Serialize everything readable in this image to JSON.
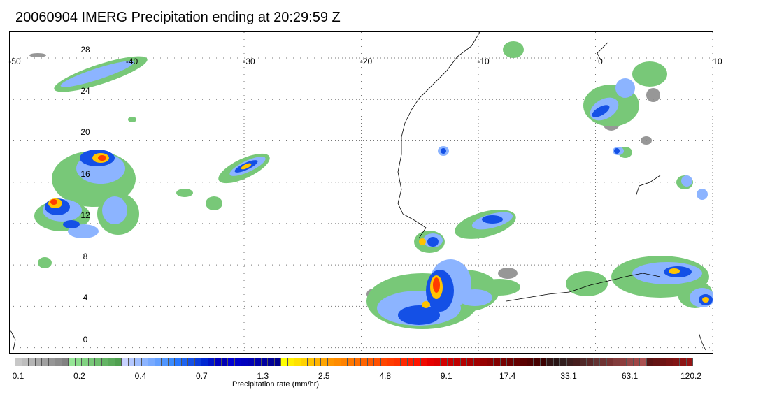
{
  "title": "20060904 IMERG Precipitation ending at 20:29:59 Z",
  "map": {
    "lon_ticks": [
      "-50",
      "-40",
      "-30",
      "-20",
      "-10",
      "0",
      "10"
    ],
    "lat_ticks": [
      "28",
      "24",
      "20",
      "16",
      "12",
      "8",
      "4",
      "0"
    ],
    "lon_range": [
      -50,
      10
    ],
    "lat_range": [
      -0.5,
      30.5
    ],
    "gridlines": true,
    "grid_style": "dotted"
  },
  "colorbar": {
    "label": "Precipitation rate (mm/hr)",
    "tick_labels": [
      "0.1",
      "0.2",
      "0.4",
      "0.7",
      "1.3",
      "2.5",
      "4.8",
      "9.1",
      "17.4",
      "33.1",
      "63.1",
      "120.2"
    ],
    "colors": [
      "#c8c8c8",
      "#bebebe",
      "#b4b4b4",
      "#aaaaaa",
      "#a0a0a0",
      "#969696",
      "#8c8c8c",
      "#828282",
      "#96e696",
      "#8cdc8c",
      "#82d282",
      "#78c878",
      "#6ebe6e",
      "#64b464",
      "#5aaa5a",
      "#50a050",
      "#c8d2ff",
      "#b4c8ff",
      "#a0beff",
      "#8cb4ff",
      "#78aaff",
      "#64a0ff",
      "#5096ff",
      "#3c8cff",
      "#2878ff",
      "#1e64f0",
      "#1450e6",
      "#0a3cdc",
      "#0028d2",
      "#0014c8",
      "#0000be",
      "#0000b4",
      "#0000d2",
      "#0000c8",
      "#0000be",
      "#0000b4",
      "#0000aa",
      "#0000a0",
      "#000096",
      "#00008c",
      "#ffff00",
      "#fff000",
      "#ffe100",
      "#ffd200",
      "#ffc300",
      "#ffb400",
      "#ffa500",
      "#ff9600",
      "#ff8c00",
      "#ff8200",
      "#ff7800",
      "#ff6e00",
      "#ff6400",
      "#ff5a00",
      "#ff5000",
      "#ff4600",
      "#ff3c00",
      "#ff3200",
      "#ff2800",
      "#ff1e00",
      "#ff1400",
      "#f00a00",
      "#e60000",
      "#dc0000",
      "#d20000",
      "#c80000",
      "#be0000",
      "#b40000",
      "#aa0000",
      "#a00000",
      "#960000",
      "#8c0000",
      "#820000",
      "#780000",
      "#6e0000",
      "#640000",
      "#5a0000",
      "#500000",
      "#460000",
      "#3c0000",
      "#321414",
      "#281414",
      "#321e1e",
      "#3c1e1e",
      "#461e1e",
      "#502828",
      "#5a2828",
      "#643232",
      "#6e3232",
      "#783232",
      "#823c3c",
      "#8c3c3c",
      "#964646",
      "#a04646",
      "#aa5050",
      "#5a1414",
      "#641414",
      "#6e1414",
      "#781414",
      "#821414",
      "#8c1414",
      "#961414"
    ]
  }
}
